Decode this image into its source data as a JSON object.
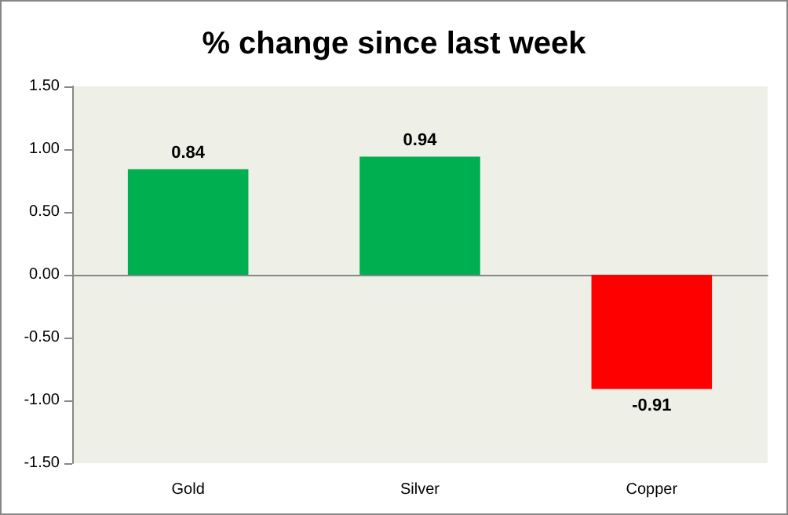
{
  "chart_data": {
    "type": "bar",
    "title": "% change since last week",
    "categories": [
      "Gold",
      "Silver",
      "Copper"
    ],
    "values": [
      0.84,
      0.94,
      -0.91
    ],
    "colors": [
      "#00b050",
      "#00b050",
      "#ff0000"
    ],
    "ylim": [
      -1.5,
      1.5
    ],
    "yticks": [
      {
        "value": -1.5,
        "label": "-1.50"
      },
      {
        "value": -1,
        "label": "-1.00"
      },
      {
        "value": -0.5,
        "label": "-0.50"
      },
      {
        "value": 0,
        "label": "0.00"
      },
      {
        "value": 0.5,
        "label": "0.50"
      },
      {
        "value": 1,
        "label": "1.00"
      },
      {
        "value": 1.5,
        "label": "1.50"
      }
    ],
    "data_labels": true
  }
}
